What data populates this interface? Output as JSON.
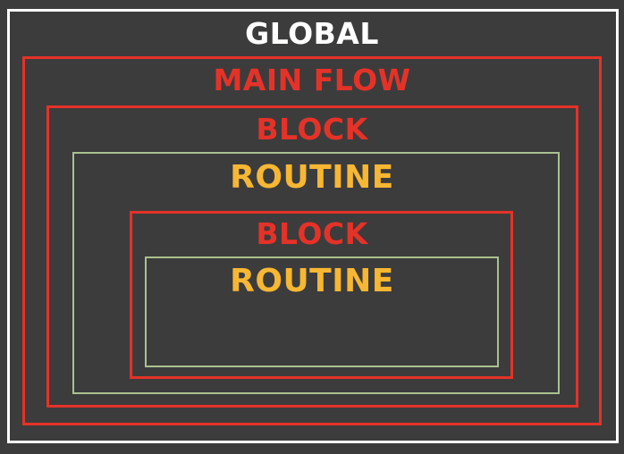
{
  "diagram": {
    "title": "GLOBAL",
    "colors": {
      "background": "#3c3c3c",
      "global": "#ffffff",
      "main_flow": "#e53228",
      "block": "#e53228",
      "routine_border": "#a9c28f",
      "routine_text": "#f7b733"
    },
    "levels": [
      {
        "label": "GLOBAL"
      },
      {
        "label": "MAIN FLOW"
      },
      {
        "label": "BLOCK"
      },
      {
        "label": "ROUTINE"
      },
      {
        "label": "BLOCK"
      },
      {
        "label": "ROUTINE"
      }
    ]
  }
}
